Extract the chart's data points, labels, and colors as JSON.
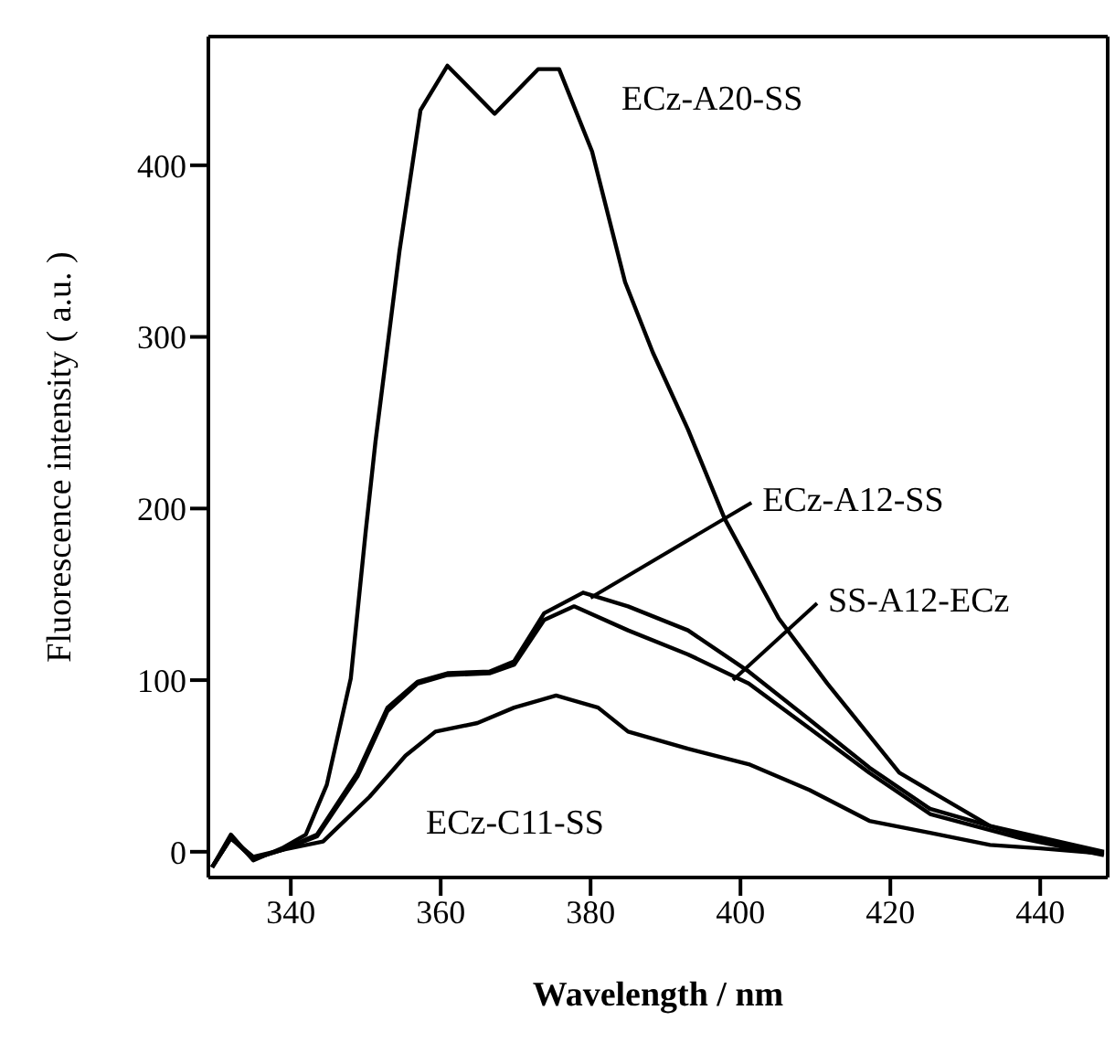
{
  "chart_data": {
    "type": "line",
    "xlabel": "Wavelength  / nm",
    "ylabel": "Fluorescence intensity ( a.u. )",
    "xlim": [
      329,
      449
    ],
    "ylim": [
      -15,
      475
    ],
    "xticks": [
      340,
      360,
      380,
      400,
      420,
      440
    ],
    "yticks": [
      0,
      100,
      200,
      300,
      400
    ],
    "marker": "none",
    "line_style": "solid",
    "series": [
      {
        "color": "#000000",
        "x": [
          329.5,
          332,
          335,
          338.8,
          342,
          344.8,
          348,
          350,
          351.3,
          354.5,
          357.3,
          360.9,
          367.2,
          373,
          375.8,
          380.2,
          384.6,
          388.3,
          393,
          397.9,
          405.1,
          411.6,
          421.2,
          433.3,
          448.5
        ],
        "values": [
          -9,
          10,
          -5,
          2,
          10,
          39,
          101,
          187,
          239,
          350,
          432,
          458,
          430,
          456,
          456,
          408,
          332,
          291,
          246,
          194,
          136,
          98,
          46,
          15,
          0
        ]
      },
      {
        "color": "#000000",
        "x": [
          329.5,
          332,
          335,
          338.8,
          343.5,
          348.9,
          352.9,
          356.9,
          360.9,
          366.5,
          369.8,
          373.8,
          379,
          385,
          393,
          401.1,
          409.2,
          417.2,
          425.3,
          437.3,
          448.5
        ],
        "values": [
          -9,
          8,
          -3,
          1,
          10,
          46,
          84,
          99,
          104,
          105,
          111,
          139,
          151,
          143,
          129,
          105,
          77,
          49,
          25,
          10,
          -1
        ]
      },
      {
        "color": "#000000",
        "x": [
          329.5,
          332,
          335,
          338.8,
          343.5,
          348.9,
          352.9,
          356.9,
          360.9,
          366.5,
          369.8,
          373.8,
          377.8,
          385,
          393,
          401.1,
          409.2,
          417.2,
          425.3,
          437.3,
          448.5
        ],
        "values": [
          -9,
          8,
          -4,
          1,
          9,
          44,
          82,
          98,
          103,
          104,
          109,
          135,
          143,
          129,
          115,
          98,
          72,
          46,
          22,
          8,
          -2
        ]
      },
      {
        "color": "#000000",
        "x": [
          329.5,
          332,
          335,
          338.8,
          344.3,
          350.5,
          355.3,
          359.3,
          364.9,
          369.8,
          375.4,
          381,
          385,
          393,
          401.1,
          409.2,
          417.2,
          425.3,
          433.3,
          440,
          448.5
        ],
        "values": [
          -9,
          8,
          -4,
          1,
          6,
          32,
          56,
          70,
          75,
          84,
          91,
          84,
          70,
          60,
          51,
          36,
          18,
          11,
          4,
          2,
          -1
        ]
      }
    ],
    "annotations": [
      "ECz-A20-SS",
      "ECz-C11-SS",
      {
        "text": "ECz-A12-SS",
        "x": 380,
        "y": 148
      },
      {
        "text": "SS-A12-ECz",
        "x": 399,
        "y": 100
      }
    ]
  }
}
